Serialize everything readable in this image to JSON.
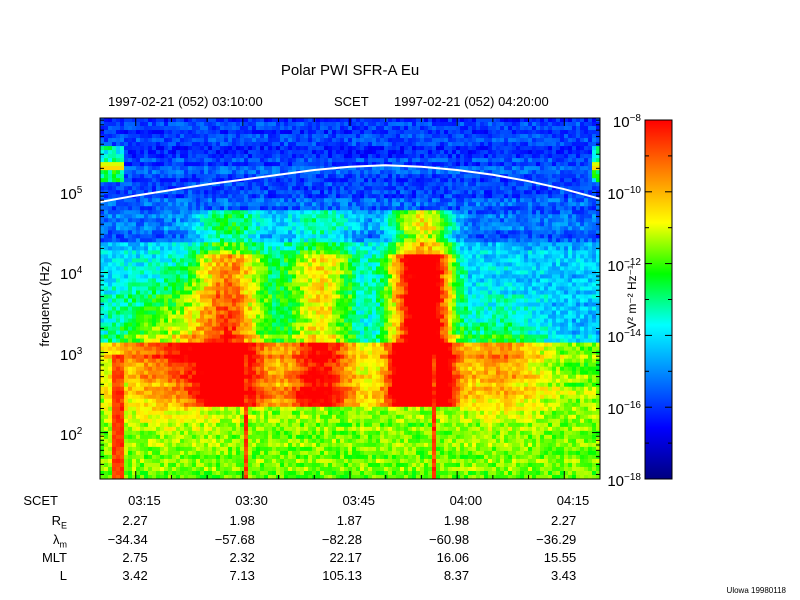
{
  "chart_data": {
    "type": "heatmap",
    "title": "Polar PWI SFR-A Eu",
    "header": {
      "start": "1997-02-21 (052) 03:10:00",
      "label": "SCET",
      "end": "1997-02-21 (052) 04:20:00"
    },
    "xlim_minutes": [
      190,
      260
    ],
    "ylabel": "frequency (Hz)",
    "ylim_log10": [
      1.42,
      5.93
    ],
    "y_ticks": [
      {
        "base": "10",
        "exp": "2",
        "log10": 2
      },
      {
        "base": "10",
        "exp": "3",
        "log10": 3
      },
      {
        "base": "10",
        "exp": "4",
        "log10": 4
      },
      {
        "base": "10",
        "exp": "5",
        "log10": 5
      }
    ],
    "x_ticks": [
      {
        "label": "03:15",
        "minutes": 195
      },
      {
        "label": "03:30",
        "minutes": 210
      },
      {
        "label": "03:45",
        "minutes": 225
      },
      {
        "label": "04:00",
        "minutes": 240
      },
      {
        "label": "04:15",
        "minutes": 255
      }
    ],
    "gyrofrequency_curve": {
      "minutes": [
        190,
        195,
        200,
        205,
        210,
        215,
        220,
        225,
        230,
        235,
        240,
        245,
        250,
        255,
        260
      ],
      "log10_hz": [
        4.88,
        4.96,
        5.03,
        5.1,
        5.16,
        5.22,
        5.28,
        5.32,
        5.34,
        5.32,
        5.28,
        5.22,
        5.14,
        5.04,
        4.92
      ]
    },
    "colorbar": {
      "label": "V² m⁻² Hz⁻¹",
      "ticks": [
        {
          "base": "10",
          "exp": "−8",
          "log10": -8
        },
        {
          "base": "10",
          "exp": "−10",
          "log10": -10
        },
        {
          "base": "10",
          "exp": "−12",
          "log10": -12
        },
        {
          "base": "10",
          "exp": "−14",
          "log10": -14
        },
        {
          "base": "10",
          "exp": "−16",
          "log10": -16
        },
        {
          "base": "10",
          "exp": "−18",
          "log10": -18
        }
      ],
      "range_log10": [
        -18,
        -8
      ],
      "colormap": [
        "#00007f",
        "#0000ff",
        "#0080ff",
        "#00ffff",
        "#00ff00",
        "#ffff00",
        "#ff8000",
        "#ff0000"
      ]
    },
    "ephemeris": {
      "times": [
        "03:15",
        "03:30",
        "03:45",
        "04:00",
        "04:15"
      ],
      "rows": [
        {
          "label": "SCET",
          "values": [
            "03:15",
            "03:30",
            "03:45",
            "04:00",
            "04:15"
          ]
        },
        {
          "label": "RE",
          "label_main": "R",
          "label_sub": "E",
          "values": [
            "2.27",
            "1.98",
            "1.87",
            "1.98",
            "2.27"
          ]
        },
        {
          "label": "λm",
          "label_main": "λ",
          "label_sub": "m",
          "values": [
            "−34.34",
            "−57.68",
            "−82.28",
            "−60.98",
            "−36.29"
          ]
        },
        {
          "label": "MLT",
          "values": [
            "2.75",
            "2.32",
            "22.17",
            "16.06",
            "15.55"
          ]
        },
        {
          "label": "L",
          "values": [
            "3.42",
            "7.13",
            "105.13",
            "8.37",
            "3.43"
          ]
        }
      ]
    }
  },
  "credit": "Ulowa 19980118"
}
